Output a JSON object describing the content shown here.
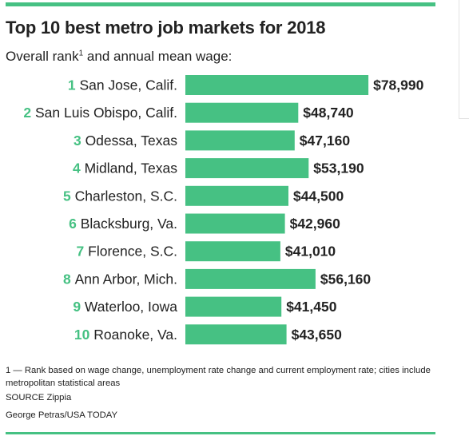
{
  "chart_data": {
    "type": "bar",
    "orientation": "horizontal",
    "title": "Top 10 best metro job markets for 2018",
    "subtitle_text": "Overall rank",
    "subtitle_sup": "1",
    "subtitle_tail": " and annual mean wage:",
    "ranks": [
      "1",
      "2",
      "3",
      "4",
      "5",
      "6",
      "7",
      "8",
      "9",
      "10"
    ],
    "categories": [
      "San Jose, Calif.",
      "San Luis Obispo, Calif.",
      "Odessa, Texas",
      "Midland, Texas",
      "Charleston, S.C.",
      "Blacksburg, Va.",
      "Florence, S.C.",
      "Ann Arbor, Mich.",
      "Waterloo, Iowa",
      "Roanoke, Va."
    ],
    "values": [
      78990,
      48740,
      47160,
      53190,
      44500,
      42960,
      41010,
      56160,
      41450,
      43650
    ],
    "value_labels": [
      "$78,990",
      "$48,740",
      "$47,160",
      "$53,190",
      "$44,500",
      "$42,960",
      "$41,010",
      "$56,160",
      "$41,450",
      "$43,650"
    ],
    "xlim": [
      0,
      80000
    ],
    "grid": false,
    "legend": "none",
    "bar_color": "#46c183",
    "rank_color": "#46c183"
  },
  "footnote": "1 — Rank based on wage change, unemployment rate change and current employment rate; cities include metropolitan statistical areas",
  "source": "SOURCE Zippia",
  "credit": "George Petras/USA TODAY"
}
